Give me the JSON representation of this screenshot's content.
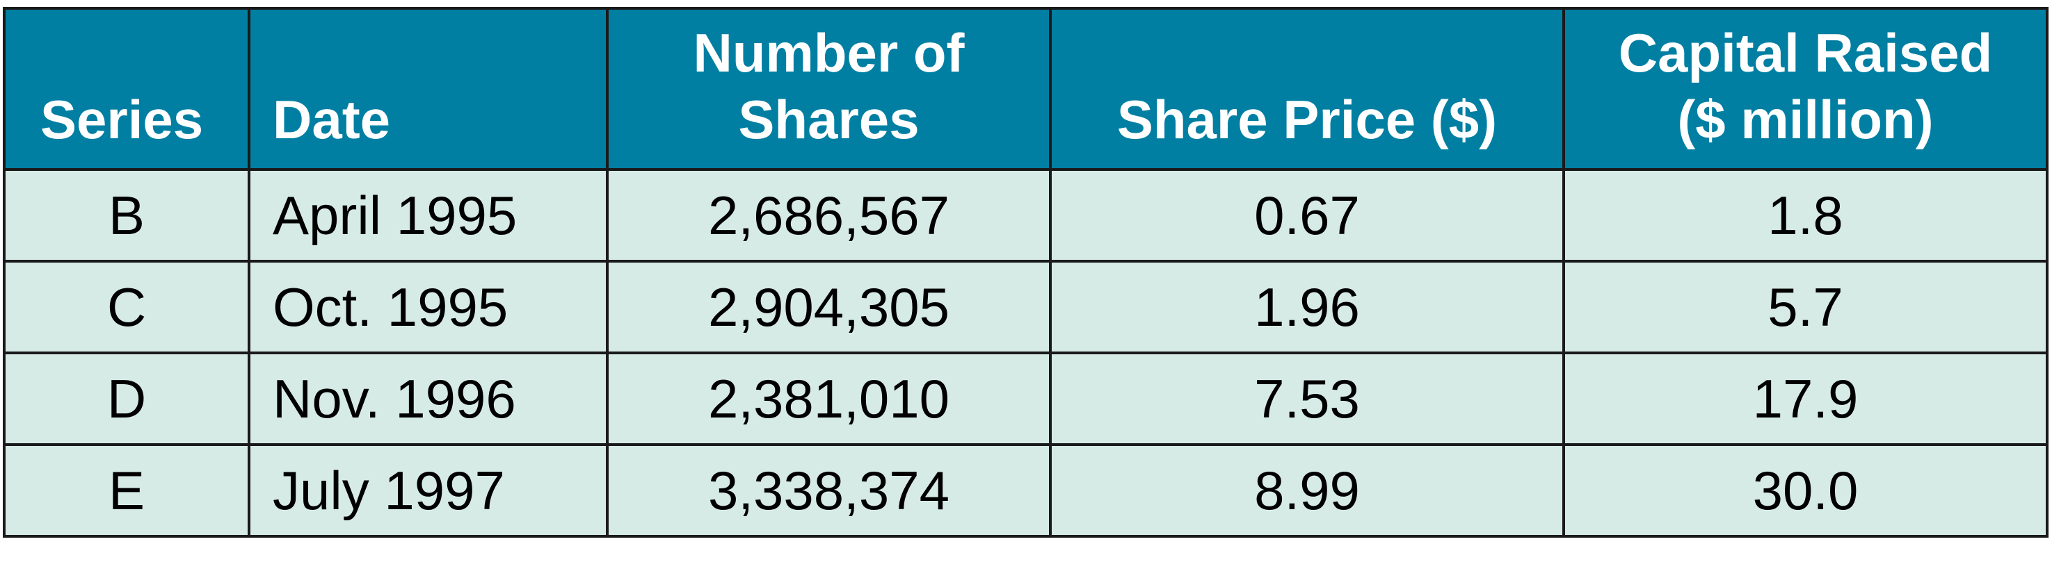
{
  "table": {
    "headers": {
      "series": "Series",
      "date": "Date",
      "shares_line1": "Number of",
      "shares_line2": "Shares",
      "price": "Share Price ($)",
      "capital_line1": "Capital Raised",
      "capital_line2": "($ million)"
    },
    "rows": [
      {
        "series": "B",
        "date": "April 1995",
        "shares": "2,686,567",
        "price": "0.67",
        "capital": "1.8"
      },
      {
        "series": "C",
        "date": "Oct. 1995",
        "shares": "2,904,305",
        "price": "1.96",
        "capital": "5.7"
      },
      {
        "series": "D",
        "date": "Nov. 1996",
        "shares": "2,381,010",
        "price": "7.53",
        "capital": "17.9"
      },
      {
        "series": "E",
        "date": "July 1997",
        "shares": "3,338,374",
        "price": "8.99",
        "capital": "30.0"
      }
    ]
  },
  "colors": {
    "header_bg": "#007fa3",
    "header_text": "#ffffff",
    "row_bg": "#d7ebe6",
    "border": "#1a1a1a"
  }
}
